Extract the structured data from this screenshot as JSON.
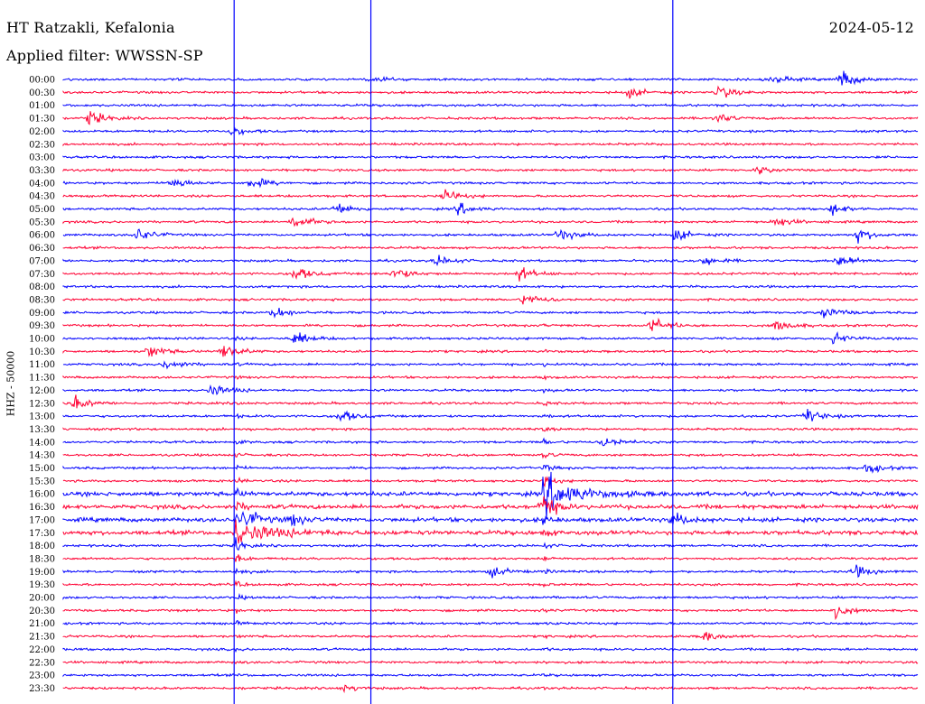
{
  "header": {
    "station": "HT Ratzakli, Kefalonia",
    "date": "2024-05-12",
    "filter": "Applied filter: WWSSN-SP"
  },
  "chart_data": {
    "type": "line",
    "title": "HT Ratzakli, Kefalonia",
    "subtitle": "Applied filter: WWSSN-SP",
    "ylabel": "HHZ - 50000",
    "row_minutes": 30,
    "times": [
      "00:00",
      "00:30",
      "01:00",
      "01:30",
      "02:00",
      "02:30",
      "03:00",
      "03:30",
      "04:00",
      "04:30",
      "05:00",
      "05:30",
      "06:00",
      "06:30",
      "07:00",
      "07:30",
      "08:00",
      "08:30",
      "09:00",
      "09:30",
      "10:00",
      "10:30",
      "11:00",
      "11:30",
      "12:00",
      "12:30",
      "13:00",
      "13:30",
      "14:00",
      "14:30",
      "15:00",
      "15:30",
      "16:00",
      "16:30",
      "17:00",
      "17:30",
      "18:00",
      "18:30",
      "19:00",
      "19:30",
      "20:00",
      "20:30",
      "21:00",
      "21:30",
      "22:00",
      "22:30",
      "23:00",
      "23:30"
    ],
    "colors": [
      "#0000ff",
      "#ff0033"
    ],
    "minute_markers": [
      6.0,
      10.8,
      21.4
    ],
    "events": [
      {
        "row": 0,
        "minute": 10.9,
        "amp": 1.0
      },
      {
        "row": 0,
        "minute": 24.9,
        "amp": 1.5
      },
      {
        "row": 0,
        "minute": 27.3,
        "amp": 3.5
      },
      {
        "row": 1,
        "minute": 19.8,
        "amp": 2.0
      },
      {
        "row": 1,
        "minute": 23.0,
        "amp": 2.6
      },
      {
        "row": 3,
        "minute": 0.9,
        "amp": 2.8
      },
      {
        "row": 3,
        "minute": 22.9,
        "amp": 1.8
      },
      {
        "row": 4,
        "minute": 5.9,
        "amp": 1.6
      },
      {
        "row": 7,
        "minute": 24.4,
        "amp": 1.5
      },
      {
        "row": 8,
        "minute": 3.8,
        "amp": 2.2
      },
      {
        "row": 8,
        "minute": 6.6,
        "amp": 2.4
      },
      {
        "row": 9,
        "minute": 13.4,
        "amp": 2.2
      },
      {
        "row": 10,
        "minute": 9.6,
        "amp": 2.5
      },
      {
        "row": 10,
        "minute": 13.9,
        "amp": 2.2
      },
      {
        "row": 10,
        "minute": 27.0,
        "amp": 2.2
      },
      {
        "row": 11,
        "minute": 8.1,
        "amp": 3.0
      },
      {
        "row": 11,
        "minute": 25.0,
        "amp": 2.0
      },
      {
        "row": 12,
        "minute": 2.6,
        "amp": 2.5
      },
      {
        "row": 12,
        "minute": 17.4,
        "amp": 2.4
      },
      {
        "row": 12,
        "minute": 21.5,
        "amp": 2.2
      },
      {
        "row": 12,
        "minute": 27.9,
        "amp": 2.5
      },
      {
        "row": 14,
        "minute": 13.1,
        "amp": 2.0
      },
      {
        "row": 14,
        "minute": 22.5,
        "amp": 2.0
      },
      {
        "row": 14,
        "minute": 27.2,
        "amp": 2.5
      },
      {
        "row": 15,
        "minute": 8.1,
        "amp": 2.8
      },
      {
        "row": 15,
        "minute": 11.6,
        "amp": 2.5
      },
      {
        "row": 15,
        "minute": 16.0,
        "amp": 2.6
      },
      {
        "row": 17,
        "minute": 16.2,
        "amp": 2.6
      },
      {
        "row": 18,
        "minute": 7.4,
        "amp": 2.2
      },
      {
        "row": 18,
        "minute": 26.7,
        "amp": 2.6
      },
      {
        "row": 19,
        "minute": 20.7,
        "amp": 2.8
      },
      {
        "row": 19,
        "minute": 25.0,
        "amp": 2.4
      },
      {
        "row": 20,
        "minute": 8.1,
        "amp": 2.6
      },
      {
        "row": 20,
        "minute": 27.0,
        "amp": 2.2
      },
      {
        "row": 21,
        "minute": 3.0,
        "amp": 2.5
      },
      {
        "row": 21,
        "minute": 5.6,
        "amp": 3.0
      },
      {
        "row": 22,
        "minute": 3.6,
        "amp": 2.2
      },
      {
        "row": 24,
        "minute": 5.2,
        "amp": 2.2
      },
      {
        "row": 25,
        "minute": 0.4,
        "amp": 2.5
      },
      {
        "row": 26,
        "minute": 9.7,
        "amp": 2.4
      },
      {
        "row": 26,
        "minute": 26.1,
        "amp": 2.6
      },
      {
        "row": 28,
        "minute": 19.0,
        "amp": 2.2
      },
      {
        "row": 30,
        "minute": 28.2,
        "amp": 2.0
      },
      {
        "row": 32,
        "minute": 17.1,
        "amp": 4.2
      },
      {
        "row": 33,
        "minute": 16.8,
        "amp": 3.0
      },
      {
        "row": 34,
        "minute": 6.4,
        "amp": 3.0
      },
      {
        "row": 34,
        "minute": 8.0,
        "amp": 2.2
      },
      {
        "row": 34,
        "minute": 21.4,
        "amp": 2.2
      },
      {
        "row": 38,
        "minute": 15.0,
        "amp": 2.0
      },
      {
        "row": 38,
        "minute": 27.8,
        "amp": 2.2
      },
      {
        "row": 41,
        "minute": 27.1,
        "amp": 2.6
      },
      {
        "row": 43,
        "minute": 22.5,
        "amp": 2.0
      },
      {
        "row": 47,
        "minute": 9.8,
        "amp": 1.4
      }
    ],
    "big_quakes": [
      {
        "start_row": 20,
        "minute": 6.1,
        "peak_row": 35,
        "end_row": 48
      },
      {
        "start_row": 19,
        "minute": 16.9,
        "peak_row": 32,
        "end_row": 48
      }
    ],
    "noisy_rows": [
      32,
      33,
      34,
      35
    ],
    "grid": false
  }
}
